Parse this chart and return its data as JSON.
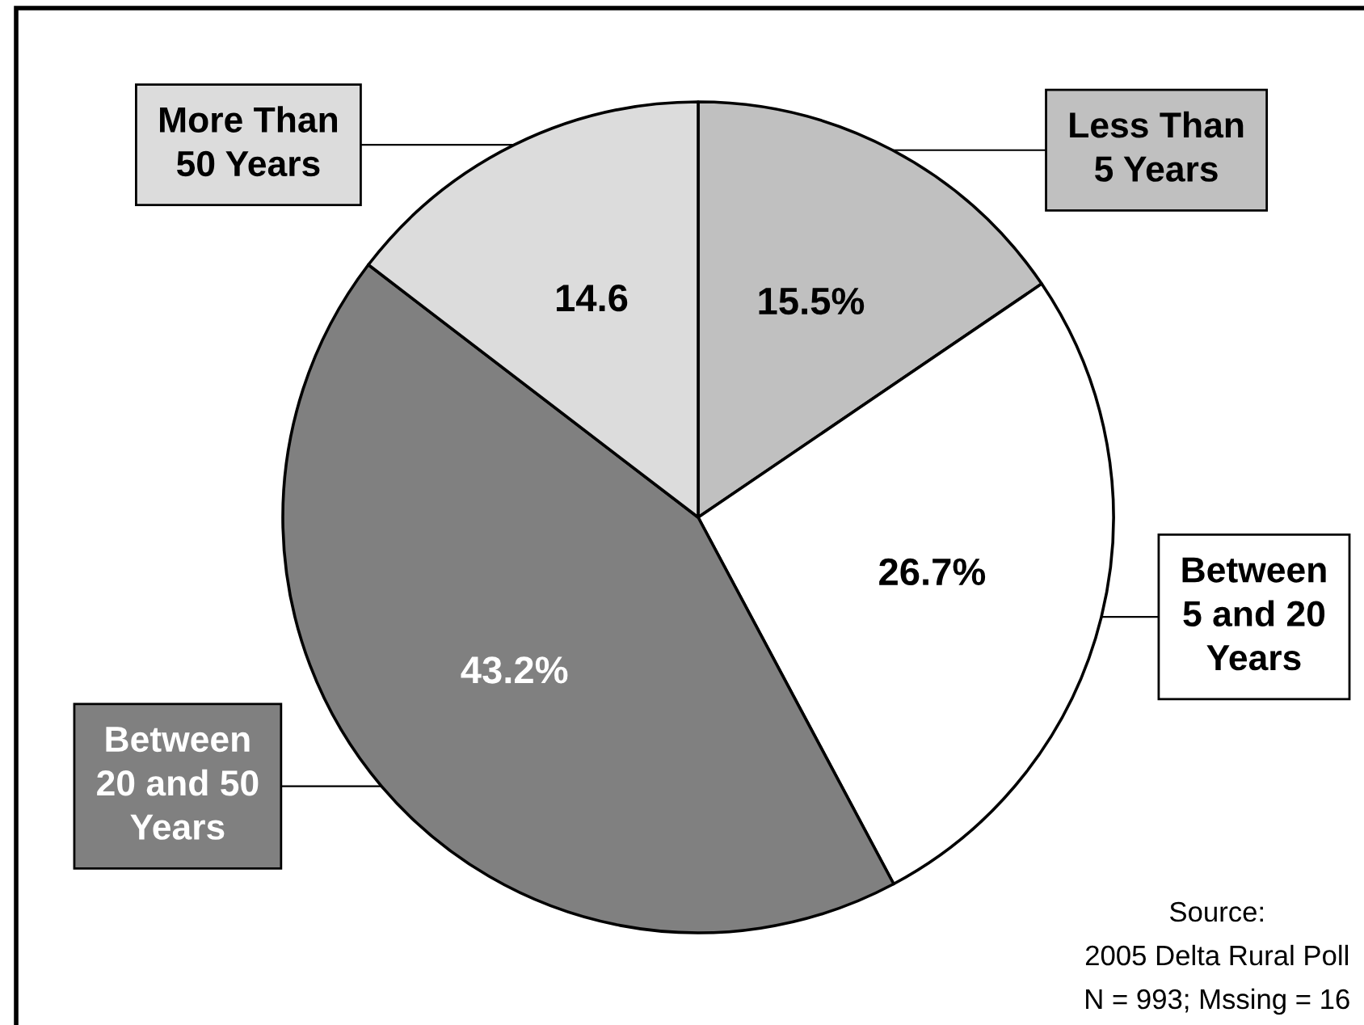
{
  "chart_data": {
    "type": "pie",
    "categories": [
      "Less Than\n5 Years",
      "Between\n5 and 20\nYears",
      "Between\n20 and 50\nYears",
      "More Than\n50 Years"
    ],
    "values": [
      15.5,
      26.7,
      43.2,
      14.6
    ],
    "colors": [
      "#c0c0c0",
      "#ffffff",
      "#808080",
      "#dcdcdc"
    ],
    "value_labels": [
      "15.5%",
      "26.7%",
      "43.2%",
      "14.6"
    ],
    "annotations": [
      "Source:",
      "2005 Delta Rural Poll",
      "N = 993; Mssing = 16"
    ]
  }
}
